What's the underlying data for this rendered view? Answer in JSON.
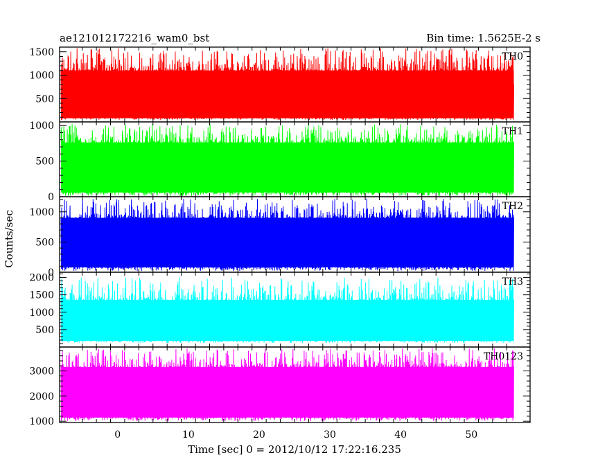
{
  "header": {
    "left_title": "ae121012172216_wam0_bst",
    "right_title": "Bin time: 1.5625E-2 s"
  },
  "axes": {
    "xlabel": "Time [sec] 0 = 2012/10/12 17:22:16.235",
    "ylabel": "Counts/sec"
  },
  "chart_data": [
    {
      "type": "line",
      "name": "TH0",
      "color": "#ff0000",
      "xlim": [
        -8.2,
        58.3
      ],
      "ylim": [
        0,
        1600
      ],
      "xticks": [
        0,
        10,
        20,
        30,
        40,
        50
      ],
      "yticks": [
        500,
        1000,
        1500
      ],
      "x_range": [
        -8,
        56
      ],
      "band": {
        "base": 640,
        "low": 80,
        "high": 1100,
        "spike_max": 1580,
        "dip_min": 40
      }
    },
    {
      "type": "line",
      "name": "TH1",
      "color": "#00ff00",
      "xlim": [
        -8.2,
        58.3
      ],
      "ylim": [
        0,
        1050
      ],
      "xticks": [
        0,
        10,
        20,
        30,
        40,
        50
      ],
      "yticks": [
        0,
        500,
        1000
      ],
      "x_range": [
        -8,
        56
      ],
      "band": {
        "base": 420,
        "low": 60,
        "high": 760,
        "spike_max": 1020,
        "dip_min": 10
      }
    },
    {
      "type": "line",
      "name": "TH2",
      "color": "#0000ff",
      "xlim": [
        -8.2,
        58.3
      ],
      "ylim": [
        0,
        1250
      ],
      "xticks": [
        0,
        10,
        20,
        30,
        40,
        50
      ],
      "yticks": [
        0,
        500,
        1000
      ],
      "x_range": [
        -8,
        56
      ],
      "band": {
        "base": 500,
        "low": 80,
        "high": 900,
        "spike_max": 1220,
        "dip_min": 20
      }
    },
    {
      "type": "line",
      "name": "TH3",
      "color": "#00ffff",
      "xlim": [
        -8.2,
        58.3
      ],
      "ylim": [
        0,
        2150
      ],
      "xticks": [
        0,
        10,
        20,
        30,
        40,
        50
      ],
      "yticks": [
        500,
        1000,
        1500,
        2000
      ],
      "x_range": [
        -8,
        56
      ],
      "band": {
        "base": 800,
        "low": 180,
        "high": 1350,
        "spike_max": 2000,
        "dip_min": 120
      }
    },
    {
      "type": "line",
      "name": "TH0123",
      "color": "#ff00ff",
      "xlim": [
        -8.2,
        58.3
      ],
      "ylim": [
        950,
        3950
      ],
      "xticks": [
        0,
        10,
        20,
        30,
        40,
        50
      ],
      "yticks": [
        1000,
        2000,
        3000
      ],
      "x_range": [
        -8,
        56
      ],
      "band": {
        "base": 2150,
        "low": 1150,
        "high": 3150,
        "spike_max": 3900,
        "dip_min": 1000
      }
    }
  ]
}
